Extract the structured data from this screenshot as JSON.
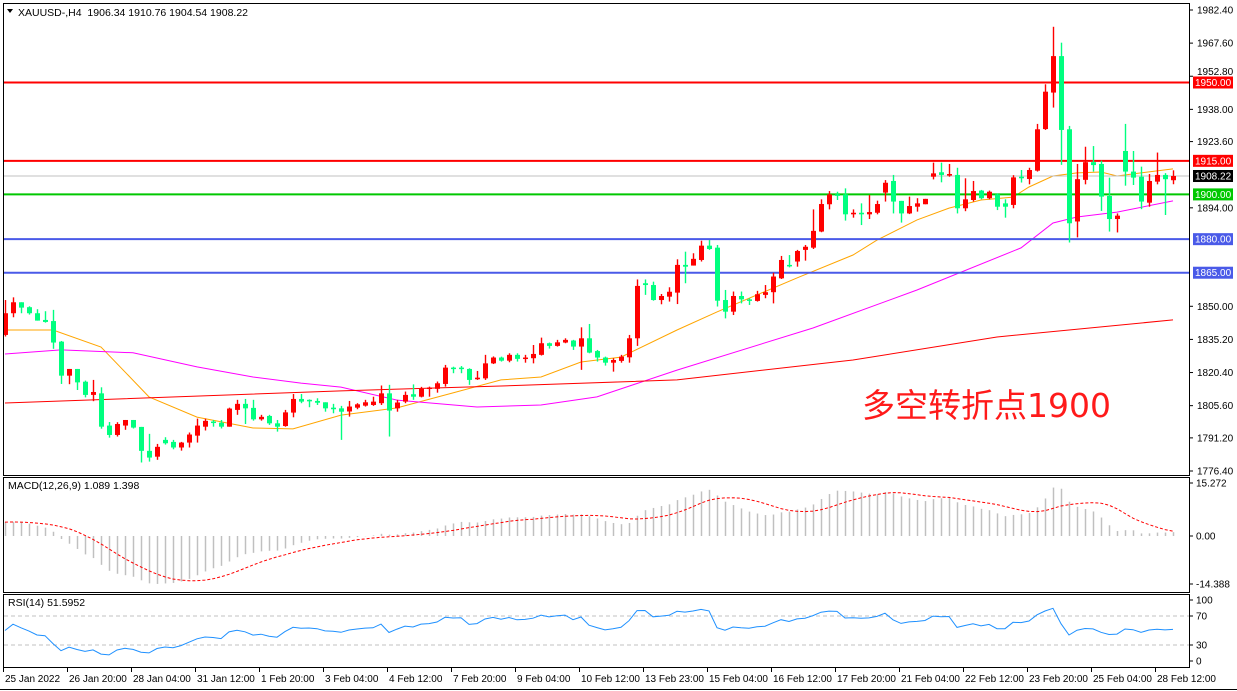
{
  "header": {
    "symbol_line": "XAUUSD-,H4  1906.34 1910.76 1904.54 1908.22",
    "macd_label": "MACD(12,26,9) 1.089 1.398",
    "rsi_label": "RSI(14) 51.5952",
    "annotation": "多空转折点1900",
    "menu_icon": "triangle-down-icon"
  },
  "chart_data": {
    "type": "candlestick",
    "symbol": "XAUUSD-",
    "timeframe": "H4",
    "colors": {
      "up": "#ff0000",
      "down": "#00ff7f",
      "ma_fast": "#ffa500",
      "ma_mid": "#ff00ff",
      "ma_slow": "#ff0000",
      "rsi": "#1e90ff",
      "macd_hist": "#c0c0c0",
      "macd_signal": "#ff0000",
      "current_price": "#c0c0c0"
    },
    "ylim": [
      1776.4,
      1982.4
    ],
    "y_ticks": [
      "1982.40",
      "1967.60",
      "1952.80",
      "1938.00",
      "1923.60",
      "1894.00",
      "1850.00",
      "1835.20",
      "1820.40",
      "1805.60",
      "1791.20",
      "1776.40"
    ],
    "time_labels": [
      "25 Jan 2022",
      "26 Jan 20:00",
      "28 Jan 04:00",
      "31 Jan 12:00",
      "1 Feb 20:00",
      "3 Feb 04:00",
      "4 Feb 12:00",
      "7 Feb 20:00",
      "9 Feb 04:00",
      "10 Feb 12:00",
      "13 Feb 23:00",
      "15 Feb 04:00",
      "16 Feb 12:00",
      "17 Feb 20:00",
      "21 Feb 04:00",
      "22 Feb 12:00",
      "23 Feb 20:00",
      "25 Feb 04:00",
      "28 Feb 12:00"
    ],
    "bars_per_time_label": 8,
    "levels": [
      {
        "price": 1950.0,
        "label": "1950.00",
        "color": "#ff0000"
      },
      {
        "price": 1915.0,
        "label": "1915.00",
        "color": "#ff0000"
      },
      {
        "price": 1900.0,
        "label": "1900.00",
        "color": "#00c800"
      },
      {
        "price": 1880.0,
        "label": "1880.00",
        "color": "#4a5ae8"
      },
      {
        "price": 1865.0,
        "label": "1865.00",
        "color": "#4a5ae8"
      }
    ],
    "current_price": {
      "price": 1908.22,
      "label": "1908.22"
    },
    "ohlc": [
      [
        1837.2,
        1852.8,
        1836.5,
        1846.9
      ],
      [
        1846.9,
        1854.0,
        1845.1,
        1851.8
      ],
      [
        1851.8,
        1851.8,
        1846.9,
        1849.4
      ],
      [
        1849.6,
        1850.0,
        1846.3,
        1846.9
      ],
      [
        1846.9,
        1848.7,
        1843.6,
        1843.6
      ],
      [
        1843.9,
        1847.8,
        1842.7,
        1843.0
      ],
      [
        1843.4,
        1848.4,
        1831.0,
        1833.8
      ],
      [
        1834.2,
        1834.5,
        1815.3,
        1819.0
      ],
      [
        1819.0,
        1822.0,
        1815.2,
        1822.0
      ],
      [
        1822.0,
        1822.0,
        1812.6,
        1816.0
      ],
      [
        1816.3,
        1816.8,
        1809.3,
        1810.4
      ],
      [
        1810.4,
        1817.1,
        1807.6,
        1811.7
      ],
      [
        1811.1,
        1813.8,
        1795.3,
        1796.2
      ],
      [
        1796.7,
        1798.3,
        1791.3,
        1792.5
      ],
      [
        1792.5,
        1798.2,
        1791.8,
        1797.4
      ],
      [
        1796.7,
        1799.2,
        1794.8,
        1799.2
      ],
      [
        1799.2,
        1799.2,
        1795.4,
        1795.8
      ],
      [
        1796.1,
        1796.1,
        1780.2,
        1785.4
      ],
      [
        1785.4,
        1793.0,
        1780.6,
        1782.4
      ],
      [
        1782.8,
        1788.5,
        1781.4,
        1787.2
      ],
      [
        1790.3,
        1791.5,
        1788.2,
        1788.8
      ],
      [
        1789.4,
        1790.3,
        1786.1,
        1786.9
      ],
      [
        1786.9,
        1789.4,
        1785.5,
        1789.1
      ],
      [
        1789.1,
        1793.6,
        1786.9,
        1792.7
      ],
      [
        1792.2,
        1799.8,
        1789.1,
        1796.7
      ],
      [
        1796.2,
        1799.8,
        1794.5,
        1798.8
      ],
      [
        1798.5,
        1799.2,
        1796.2,
        1798.0
      ],
      [
        1798.0,
        1799.2,
        1795.4,
        1796.2
      ],
      [
        1796.2,
        1804.7,
        1796.2,
        1804.3
      ],
      [
        1803.7,
        1808.2,
        1801.5,
        1806.4
      ],
      [
        1806.4,
        1808.6,
        1797.4,
        1804.4
      ],
      [
        1804.6,
        1808.2,
        1798.9,
        1799.5
      ],
      [
        1799.5,
        1801.5,
        1798.9,
        1800.6
      ],
      [
        1801.0,
        1801.5,
        1797.0,
        1797.7
      ],
      [
        1797.7,
        1799.2,
        1794.0,
        1796.2
      ],
      [
        1796.5,
        1803.7,
        1796.2,
        1802.6
      ],
      [
        1802.5,
        1810.8,
        1800.4,
        1808.6
      ],
      [
        1808.6,
        1810.8,
        1806.7,
        1807.4
      ],
      [
        1808.2,
        1808.4,
        1804.9,
        1807.7
      ],
      [
        1807.7,
        1808.9,
        1805.9,
        1806.9
      ],
      [
        1807.1,
        1807.1,
        1802.9,
        1804.4
      ],
      [
        1804.7,
        1806.4,
        1802.2,
        1804.0
      ],
      [
        1804.4,
        1805.5,
        1790.3,
        1802.9
      ],
      [
        1803.0,
        1807.7,
        1800.7,
        1805.2
      ],
      [
        1804.7,
        1806.7,
        1804.0,
        1806.2
      ],
      [
        1805.6,
        1808.2,
        1805.2,
        1807.1
      ],
      [
        1805.9,
        1809.6,
        1805.5,
        1807.4
      ],
      [
        1806.7,
        1814.6,
        1805.9,
        1811.1
      ],
      [
        1811.1,
        1814.9,
        1791.8,
        1803.4
      ],
      [
        1804.4,
        1808.2,
        1802.9,
        1807.0
      ],
      [
        1807.4,
        1811.9,
        1806.7,
        1810.4
      ],
      [
        1810.7,
        1815.1,
        1808.2,
        1809.6
      ],
      [
        1809.6,
        1814.0,
        1809.3,
        1813.1
      ],
      [
        1813.1,
        1814.1,
        1809.6,
        1813.7
      ],
      [
        1813.1,
        1816.4,
        1811.4,
        1815.6
      ],
      [
        1815.3,
        1823.8,
        1814.1,
        1822.6
      ],
      [
        1822.6,
        1823.0,
        1820.1,
        1822.0
      ],
      [
        1822.6,
        1823.3,
        1820.1,
        1822.3
      ],
      [
        1822.0,
        1822.3,
        1814.9,
        1817.1
      ],
      [
        1817.4,
        1821.1,
        1817.1,
        1818.1
      ],
      [
        1817.8,
        1828.3,
        1817.1,
        1824.5
      ],
      [
        1824.5,
        1827.6,
        1824.2,
        1827.1
      ],
      [
        1827.1,
        1827.5,
        1825.3,
        1825.7
      ],
      [
        1825.7,
        1829.0,
        1825.0,
        1828.3
      ],
      [
        1828.3,
        1829.0,
        1825.3,
        1826.5
      ],
      [
        1826.8,
        1828.3,
        1824.8,
        1827.1
      ],
      [
        1826.8,
        1832.7,
        1824.5,
        1828.7
      ],
      [
        1828.3,
        1836.0,
        1828.0,
        1833.5
      ],
      [
        1833.5,
        1833.8,
        1831.1,
        1832.3
      ],
      [
        1832.3,
        1835.0,
        1832.0,
        1833.9
      ],
      [
        1833.8,
        1835.7,
        1833.5,
        1835.0
      ],
      [
        1834.7,
        1835.0,
        1830.5,
        1832.0
      ],
      [
        1832.0,
        1840.6,
        1821.6,
        1835.7
      ],
      [
        1835.7,
        1842.1,
        1829.0,
        1829.3
      ],
      [
        1830.0,
        1830.5,
        1825.3,
        1827.1
      ],
      [
        1827.1,
        1827.5,
        1823.5,
        1824.8
      ],
      [
        1824.8,
        1826.8,
        1820.8,
        1826.0
      ],
      [
        1825.6,
        1828.3,
        1824.8,
        1827.5
      ],
      [
        1827.2,
        1837.2,
        1824.8,
        1835.7
      ],
      [
        1835.7,
        1862.0,
        1832.3,
        1859.1
      ],
      [
        1860.3,
        1862.0,
        1855.1,
        1859.5
      ],
      [
        1859.5,
        1861.0,
        1852.5,
        1852.8
      ],
      [
        1852.8,
        1855.5,
        1850.9,
        1854.6
      ],
      [
        1854.3,
        1858.5,
        1852.1,
        1856.5
      ],
      [
        1856.1,
        1871.0,
        1851.0,
        1868.5
      ],
      [
        1868.5,
        1874.4,
        1860.3,
        1867.7
      ],
      [
        1868.2,
        1873.7,
        1868.2,
        1871.2
      ],
      [
        1870.7,
        1879.3,
        1870.0,
        1877.1
      ],
      [
        1877.1,
        1879.6,
        1875.2,
        1875.6
      ],
      [
        1876.2,
        1877.4,
        1849.9,
        1852.5
      ],
      [
        1852.8,
        1857.3,
        1844.6,
        1847.6
      ],
      [
        1847.6,
        1856.6,
        1846.1,
        1854.6
      ],
      [
        1854.6,
        1856.6,
        1851.3,
        1853.1
      ],
      [
        1853.1,
        1853.6,
        1850.6,
        1852.4
      ],
      [
        1852.4,
        1856.9,
        1852.1,
        1855.4
      ],
      [
        1855.1,
        1859.5,
        1853.6,
        1856.3
      ],
      [
        1856.3,
        1865.0,
        1851.3,
        1863.3
      ],
      [
        1862.5,
        1872.5,
        1862.2,
        1870.7
      ],
      [
        1868.5,
        1872.9,
        1867.4,
        1868.2
      ],
      [
        1870.0,
        1875.2,
        1867.7,
        1874.7
      ],
      [
        1875.2,
        1877.4,
        1870.4,
        1876.6
      ],
      [
        1876.2,
        1893.3,
        1875.6,
        1883.7
      ],
      [
        1883.4,
        1897.8,
        1883.1,
        1895.7
      ],
      [
        1895.6,
        1901.5,
        1893.3,
        1900.0
      ],
      [
        1900.0,
        1901.2,
        1897.5,
        1899.7
      ],
      [
        1900.0,
        1902.7,
        1888.3,
        1891.1
      ],
      [
        1891.1,
        1893.3,
        1889.6,
        1891.8
      ],
      [
        1891.8,
        1896.0,
        1886.3,
        1891.1
      ],
      [
        1891.1,
        1899.7,
        1889.0,
        1892.1
      ],
      [
        1891.8,
        1897.2,
        1891.1,
        1895.7
      ],
      [
        1900.8,
        1906.4,
        1896.8,
        1905.2
      ],
      [
        1906.0,
        1908.7,
        1891.5,
        1896.8
      ],
      [
        1897.1,
        1897.1,
        1887.4,
        1891.5
      ],
      [
        1891.5,
        1899.0,
        1891.2,
        1894.8
      ],
      [
        1894.5,
        1898.3,
        1892.3,
        1896.0
      ],
      [
        1895.6,
        1898.0,
        1895.6,
        1898.0
      ],
      [
        1907.9,
        1914.2,
        1906.7,
        1909.4
      ],
      [
        1909.9,
        1914.2,
        1905.4,
        1908.7
      ],
      [
        1908.7,
        1913.6,
        1907.9,
        1909.1
      ],
      [
        1908.7,
        1911.9,
        1891.5,
        1893.8
      ],
      [
        1893.8,
        1907.2,
        1892.5,
        1897.8
      ],
      [
        1897.5,
        1906.0,
        1896.8,
        1901.5
      ],
      [
        1901.7,
        1902.0,
        1897.8,
        1898.3
      ],
      [
        1898.3,
        1901.7,
        1897.8,
        1901.2
      ],
      [
        1900.0,
        1900.5,
        1893.0,
        1894.5
      ],
      [
        1896.0,
        1897.8,
        1889.6,
        1894.5
      ],
      [
        1895.3,
        1908.6,
        1893.8,
        1907.6
      ],
      [
        1907.9,
        1910.9,
        1905.3,
        1907.2
      ],
      [
        1906.9,
        1911.9,
        1904.5,
        1910.9
      ],
      [
        1910.6,
        1931.5,
        1910.2,
        1929.1
      ],
      [
        1929.2,
        1949.2,
        1928.8,
        1945.9
      ],
      [
        1945.5,
        1974.9,
        1938.8,
        1961.8
      ],
      [
        1961.8,
        1967.8,
        1913.2,
        1928.8
      ],
      [
        1929.1,
        1930.6,
        1878.5,
        1887.1
      ],
      [
        1887.9,
        1913.6,
        1880.8,
        1906.8
      ],
      [
        1906.5,
        1921.3,
        1904.5,
        1914.4
      ],
      [
        1914.4,
        1921.6,
        1910.2,
        1913.1
      ],
      [
        1913.6,
        1915.1,
        1892.6,
        1899.0
      ],
      [
        1899.3,
        1907.5,
        1883.4,
        1889.0
      ],
      [
        1889.0,
        1891.5,
        1883.0,
        1890.5
      ],
      [
        1919.4,
        1931.5,
        1903.9,
        1910.2
      ],
      [
        1910.2,
        1919.4,
        1904.2,
        1907.5
      ],
      [
        1907.9,
        1912.4,
        1893.4,
        1896.8
      ],
      [
        1896.3,
        1909.1,
        1894.5,
        1906.0
      ],
      [
        1905.7,
        1918.7,
        1904.5,
        1908.7
      ],
      [
        1908.7,
        1909.5,
        1890.8,
        1906.8
      ],
      [
        1906.34,
        1910.76,
        1904.54,
        1908.22
      ]
    ],
    "moving_averages": [
      {
        "key": "fast",
        "color": "#ffa500",
        "points": [
          [
            0,
            1839.4
          ],
          [
            6,
            1839.4
          ],
          [
            12,
            1831.8
          ],
          [
            18,
            1809.5
          ],
          [
            24,
            1800.5
          ],
          [
            31,
            1795.6
          ],
          [
            36,
            1795.2
          ],
          [
            42,
            1801.4
          ],
          [
            49,
            1804.6
          ],
          [
            56,
            1811.3
          ],
          [
            62,
            1817.1
          ],
          [
            67,
            1818.4
          ],
          [
            72,
            1825.1
          ],
          [
            77,
            1827.3
          ],
          [
            84,
            1839.4
          ],
          [
            89,
            1847.5
          ],
          [
            99,
            1862.7
          ],
          [
            106,
            1872.9
          ],
          [
            109,
            1879.6
          ],
          [
            114,
            1888.6
          ],
          [
            118,
            1893.9
          ],
          [
            122,
            1897.5
          ],
          [
            126,
            1898.8
          ],
          [
            128,
            1903.3
          ],
          [
            131,
            1908.2
          ],
          [
            134,
            1909.6
          ],
          [
            137,
            1910.0
          ],
          [
            139,
            1908.2
          ],
          [
            142,
            1909.6
          ],
          [
            146,
            1911.4
          ]
        ]
      },
      {
        "key": "mid",
        "color": "#ff00ff",
        "points": [
          [
            0,
            1828.7
          ],
          [
            7,
            1830.5
          ],
          [
            16,
            1829.2
          ],
          [
            24,
            1822.9
          ],
          [
            31,
            1818.4
          ],
          [
            37,
            1815.7
          ],
          [
            42,
            1813.9
          ],
          [
            49,
            1808.1
          ],
          [
            59,
            1805.0
          ],
          [
            67,
            1805.9
          ],
          [
            74,
            1809.5
          ],
          [
            84,
            1821.5
          ],
          [
            101,
            1840.3
          ],
          [
            114,
            1857.3
          ],
          [
            127,
            1876.1
          ],
          [
            131,
            1887.2
          ],
          [
            134,
            1889.9
          ],
          [
            139,
            1892.1
          ],
          [
            146,
            1897.1
          ]
        ]
      },
      {
        "key": "slow",
        "color": "#ff0000",
        "points": [
          [
            0,
            1806.8
          ],
          [
            42,
            1812.2
          ],
          [
            62,
            1814.4
          ],
          [
            84,
            1817.1
          ],
          [
            106,
            1826.0
          ],
          [
            124,
            1836.3
          ],
          [
            146,
            1843.9
          ]
        ]
      }
    ],
    "macd": {
      "fast": 12,
      "slow": 26,
      "signal": 9,
      "main": 1.089,
      "signal_value": 1.398,
      "ylim": [
        -14.388,
        15.272
      ],
      "ticks": [
        "15.272",
        "0.00",
        "-14.388"
      ]
    },
    "rsi": {
      "period": 14,
      "value": 51.5952,
      "levels": [
        70,
        30
      ],
      "ticks": [
        "100",
        "70",
        "30",
        "0"
      ]
    }
  }
}
